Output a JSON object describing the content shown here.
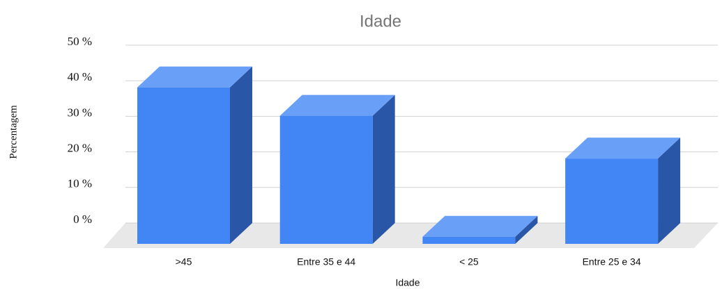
{
  "chart_data": {
    "type": "bar3d",
    "title": "Idade",
    "x_label": "Idade",
    "y_label": "Percentagem",
    "categories": [
      ">45",
      "Entre 35 e 44",
      "< 25",
      "Entre 25 e 34"
    ],
    "values": [
      44,
      36,
      2,
      24
    ],
    "color": "#4285f4",
    "ylim": [
      0,
      50
    ],
    "yticks": [
      {
        "value": 0,
        "label": "0 %"
      },
      {
        "value": 10,
        "label": "10 %"
      },
      {
        "value": 20,
        "label": "20 %"
      },
      {
        "value": 30,
        "label": "30 %"
      },
      {
        "value": 40,
        "label": "40 %"
      },
      {
        "value": 50,
        "label": "50 %"
      }
    ],
    "grid": true
  }
}
